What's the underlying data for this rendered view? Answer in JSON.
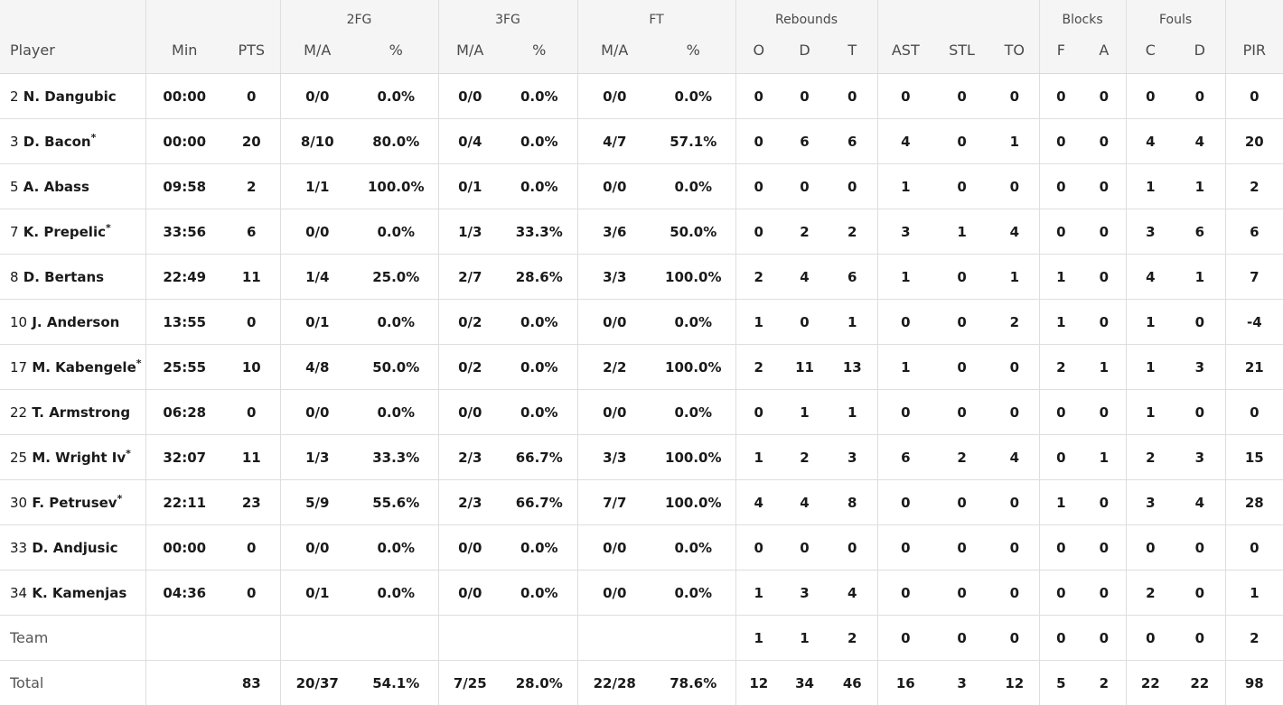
{
  "header": {
    "groups": {
      "fg2": "2FG",
      "fg3": "3FG",
      "ft": "FT",
      "rebounds": "Rebounds",
      "blocks": "Blocks",
      "fouls": "Fouls"
    },
    "columns": {
      "player": "Player",
      "min": "Min",
      "pts": "PTS",
      "fg2_ma": "M/A",
      "fg2_pct": "%",
      "fg3_ma": "M/A",
      "fg3_pct": "%",
      "ft_ma": "M/A",
      "ft_pct": "%",
      "reb_o": "O",
      "reb_d": "D",
      "reb_t": "T",
      "ast": "AST",
      "stl": "STL",
      "to": "TO",
      "blk_f": "F",
      "blk_a": "A",
      "foul_c": "C",
      "foul_d": "D",
      "pir": "PIR"
    }
  },
  "rows": [
    {
      "num": "2",
      "name": "N. Dangubic",
      "starter": "",
      "min": "00:00",
      "pts": "0",
      "fg2_ma": "0/0",
      "fg2_pct": "0.0%",
      "fg3_ma": "0/0",
      "fg3_pct": "0.0%",
      "ft_ma": "0/0",
      "ft_pct": "0.0%",
      "reb_o": "0",
      "reb_d": "0",
      "reb_t": "0",
      "ast": "0",
      "stl": "0",
      "to": "0",
      "blk_f": "0",
      "blk_a": "0",
      "foul_c": "0",
      "foul_d": "0",
      "pir": "0"
    },
    {
      "num": "3",
      "name": "D. Bacon",
      "starter": "*",
      "min": "00:00",
      "pts": "20",
      "fg2_ma": "8/10",
      "fg2_pct": "80.0%",
      "fg3_ma": "0/4",
      "fg3_pct": "0.0%",
      "ft_ma": "4/7",
      "ft_pct": "57.1%",
      "reb_o": "0",
      "reb_d": "6",
      "reb_t": "6",
      "ast": "4",
      "stl": "0",
      "to": "1",
      "blk_f": "0",
      "blk_a": "0",
      "foul_c": "4",
      "foul_d": "4",
      "pir": "20"
    },
    {
      "num": "5",
      "name": "A. Abass",
      "starter": "",
      "min": "09:58",
      "pts": "2",
      "fg2_ma": "1/1",
      "fg2_pct": "100.0%",
      "fg3_ma": "0/1",
      "fg3_pct": "0.0%",
      "ft_ma": "0/0",
      "ft_pct": "0.0%",
      "reb_o": "0",
      "reb_d": "0",
      "reb_t": "0",
      "ast": "1",
      "stl": "0",
      "to": "0",
      "blk_f": "0",
      "blk_a": "0",
      "foul_c": "1",
      "foul_d": "1",
      "pir": "2"
    },
    {
      "num": "7",
      "name": "K. Prepelic",
      "starter": "*",
      "min": "33:56",
      "pts": "6",
      "fg2_ma": "0/0",
      "fg2_pct": "0.0%",
      "fg3_ma": "1/3",
      "fg3_pct": "33.3%",
      "ft_ma": "3/6",
      "ft_pct": "50.0%",
      "reb_o": "0",
      "reb_d": "2",
      "reb_t": "2",
      "ast": "3",
      "stl": "1",
      "to": "4",
      "blk_f": "0",
      "blk_a": "0",
      "foul_c": "3",
      "foul_d": "6",
      "pir": "6"
    },
    {
      "num": "8",
      "name": "D. Bertans",
      "starter": "",
      "min": "22:49",
      "pts": "11",
      "fg2_ma": "1/4",
      "fg2_pct": "25.0%",
      "fg3_ma": "2/7",
      "fg3_pct": "28.6%",
      "ft_ma": "3/3",
      "ft_pct": "100.0%",
      "reb_o": "2",
      "reb_d": "4",
      "reb_t": "6",
      "ast": "1",
      "stl": "0",
      "to": "1",
      "blk_f": "1",
      "blk_a": "0",
      "foul_c": "4",
      "foul_d": "1",
      "pir": "7"
    },
    {
      "num": "10",
      "name": "J. Anderson",
      "starter": "",
      "min": "13:55",
      "pts": "0",
      "fg2_ma": "0/1",
      "fg2_pct": "0.0%",
      "fg3_ma": "0/2",
      "fg3_pct": "0.0%",
      "ft_ma": "0/0",
      "ft_pct": "0.0%",
      "reb_o": "1",
      "reb_d": "0",
      "reb_t": "1",
      "ast": "0",
      "stl": "0",
      "to": "2",
      "blk_f": "1",
      "blk_a": "0",
      "foul_c": "1",
      "foul_d": "0",
      "pir": "-4"
    },
    {
      "num": "17",
      "name": "M. Kabengele",
      "starter": "*",
      "min": "25:55",
      "pts": "10",
      "fg2_ma": "4/8",
      "fg2_pct": "50.0%",
      "fg3_ma": "0/2",
      "fg3_pct": "0.0%",
      "ft_ma": "2/2",
      "ft_pct": "100.0%",
      "reb_o": "2",
      "reb_d": "11",
      "reb_t": "13",
      "ast": "1",
      "stl": "0",
      "to": "0",
      "blk_f": "2",
      "blk_a": "1",
      "foul_c": "1",
      "foul_d": "3",
      "pir": "21"
    },
    {
      "num": "22",
      "name": "T. Armstrong",
      "starter": "",
      "min": "06:28",
      "pts": "0",
      "fg2_ma": "0/0",
      "fg2_pct": "0.0%",
      "fg3_ma": "0/0",
      "fg3_pct": "0.0%",
      "ft_ma": "0/0",
      "ft_pct": "0.0%",
      "reb_o": "0",
      "reb_d": "1",
      "reb_t": "1",
      "ast": "0",
      "stl": "0",
      "to": "0",
      "blk_f": "0",
      "blk_a": "0",
      "foul_c": "1",
      "foul_d": "0",
      "pir": "0"
    },
    {
      "num": "25",
      "name": "M. Wright Iv",
      "starter": "*",
      "min": "32:07",
      "pts": "11",
      "fg2_ma": "1/3",
      "fg2_pct": "33.3%",
      "fg3_ma": "2/3",
      "fg3_pct": "66.7%",
      "ft_ma": "3/3",
      "ft_pct": "100.0%",
      "reb_o": "1",
      "reb_d": "2",
      "reb_t": "3",
      "ast": "6",
      "stl": "2",
      "to": "4",
      "blk_f": "0",
      "blk_a": "1",
      "foul_c": "2",
      "foul_d": "3",
      "pir": "15"
    },
    {
      "num": "30",
      "name": "F. Petrusev",
      "starter": "*",
      "min": "22:11",
      "pts": "23",
      "fg2_ma": "5/9",
      "fg2_pct": "55.6%",
      "fg3_ma": "2/3",
      "fg3_pct": "66.7%",
      "ft_ma": "7/7",
      "ft_pct": "100.0%",
      "reb_o": "4",
      "reb_d": "4",
      "reb_t": "8",
      "ast": "0",
      "stl": "0",
      "to": "0",
      "blk_f": "1",
      "blk_a": "0",
      "foul_c": "3",
      "foul_d": "4",
      "pir": "28"
    },
    {
      "num": "33",
      "name": "D. Andjusic",
      "starter": "",
      "min": "00:00",
      "pts": "0",
      "fg2_ma": "0/0",
      "fg2_pct": "0.0%",
      "fg3_ma": "0/0",
      "fg3_pct": "0.0%",
      "ft_ma": "0/0",
      "ft_pct": "0.0%",
      "reb_o": "0",
      "reb_d": "0",
      "reb_t": "0",
      "ast": "0",
      "stl": "0",
      "to": "0",
      "blk_f": "0",
      "blk_a": "0",
      "foul_c": "0",
      "foul_d": "0",
      "pir": "0"
    },
    {
      "num": "34",
      "name": "K. Kamenjas",
      "starter": "",
      "min": "04:36",
      "pts": "0",
      "fg2_ma": "0/1",
      "fg2_pct": "0.0%",
      "fg3_ma": "0/0",
      "fg3_pct": "0.0%",
      "ft_ma": "0/0",
      "ft_pct": "0.0%",
      "reb_o": "1",
      "reb_d": "3",
      "reb_t": "4",
      "ast": "0",
      "stl": "0",
      "to": "0",
      "blk_f": "0",
      "blk_a": "0",
      "foul_c": "2",
      "foul_d": "0",
      "pir": "1"
    }
  ],
  "team": {
    "label": "Team",
    "reb_o": "1",
    "reb_d": "1",
    "reb_t": "2",
    "ast": "0",
    "stl": "0",
    "to": "0",
    "blk_f": "0",
    "blk_a": "0",
    "foul_c": "0",
    "foul_d": "0",
    "pir": "2"
  },
  "total": {
    "label": "Total",
    "pts": "83",
    "fg2_ma": "20/37",
    "fg2_pct": "54.1%",
    "fg3_ma": "7/25",
    "fg3_pct": "28.0%",
    "ft_ma": "22/28",
    "ft_pct": "78.6%",
    "reb_o": "12",
    "reb_d": "34",
    "reb_t": "46",
    "ast": "16",
    "stl": "3",
    "to": "12",
    "blk_f": "5",
    "blk_a": "2",
    "foul_c": "22",
    "foul_d": "22",
    "pir": "98"
  }
}
